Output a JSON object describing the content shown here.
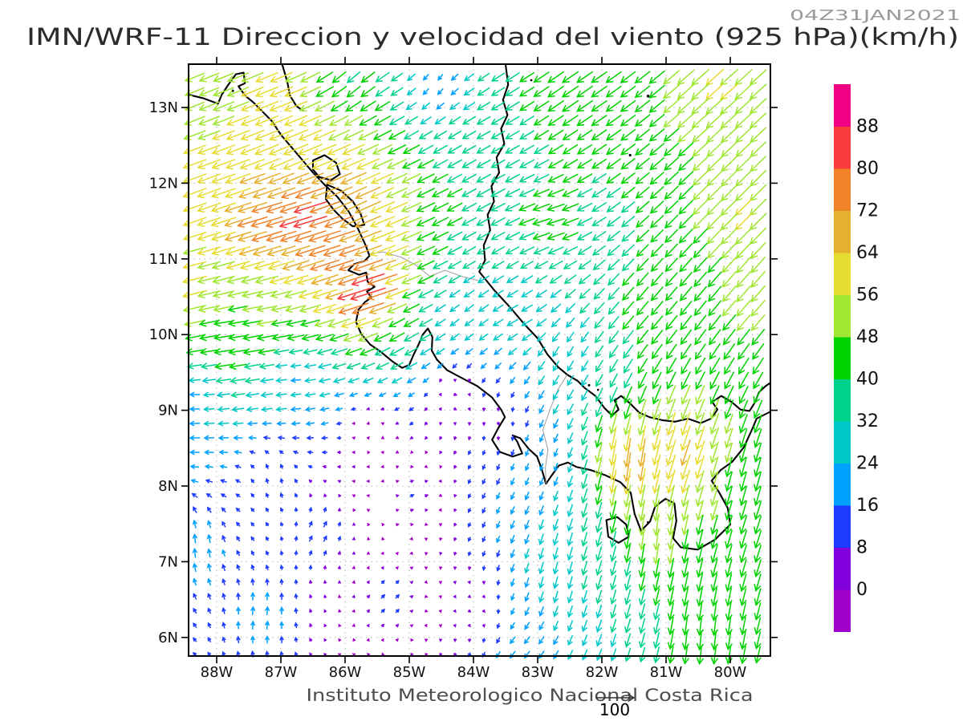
{
  "figure": {
    "title": "IMN/WRF-11 Direccion y velocidad del viento (925 hPa)(km/h)",
    "timestamp": "04Z31JAN2021",
    "footer": "Instituto Meteorologico Nacional Costa Rica",
    "reference_label": "100"
  },
  "colors": {
    "background": "#ffffff",
    "frame": "#000000",
    "coast": "#000000",
    "border": "#9c9c9c",
    "grid": "#bdbdbd",
    "title": "#2b2b2b",
    "timestamp": "#9a9a9a",
    "footer": "#4d4d4d",
    "axis_label": "#111111",
    "reference_arrow": "#333333"
  },
  "axes": {
    "lat_ticks": [
      {
        "value": 6,
        "label": "6N"
      },
      {
        "value": 7,
        "label": "7N"
      },
      {
        "value": 8,
        "label": "8N"
      },
      {
        "value": 9,
        "label": "9N"
      },
      {
        "value": 10,
        "label": "10N"
      },
      {
        "value": 11,
        "label": "11N"
      },
      {
        "value": 12,
        "label": "12N"
      },
      {
        "value": 13,
        "label": "13N"
      }
    ],
    "lon_ticks": [
      {
        "value": 88,
        "label": "88W"
      },
      {
        "value": 87,
        "label": "87W"
      },
      {
        "value": 86,
        "label": "86W"
      },
      {
        "value": 85,
        "label": "85W"
      },
      {
        "value": 84,
        "label": "84W"
      },
      {
        "value": 83,
        "label": "83W"
      },
      {
        "value": 82,
        "label": "82W"
      },
      {
        "value": 81,
        "label": "81W"
      },
      {
        "value": 80,
        "label": "80W"
      }
    ]
  },
  "chart_data": {
    "type": "vector_field",
    "variable": "Direccion y velocidad del viento",
    "level": "925 hPa",
    "units": "km/h",
    "model": "IMN/WRF-11",
    "valid_time": "04Z31JAN2021",
    "lon_range_degW": [
      88.44,
      79.38
    ],
    "lat_range_degN": [
      5.75,
      13.57
    ],
    "grid_on": true,
    "legend_position": "right",
    "colorbar": {
      "boundary_labels": [
        0,
        8,
        16,
        24,
        32,
        40,
        48,
        56,
        64,
        72,
        80,
        88
      ],
      "colors_bottom_to_top": [
        "#a000c8",
        "#8200dc",
        "#1e3cff",
        "#00a0ff",
        "#00c8c8",
        "#00d28c",
        "#00d200",
        "#a0e632",
        "#e6dc32",
        "#e6af2d",
        "#f08228",
        "#fa3c3c",
        "#f00082"
      ]
    },
    "reference_vector": {
      "speed": 100,
      "label": "100"
    },
    "wind_samples": [
      {
        "lonW": 88.4,
        "latN": 13.3,
        "u": -45,
        "v": -18
      },
      {
        "lonW": 87.0,
        "latN": 13.0,
        "u": -55,
        "v": -22
      },
      {
        "lonW": 85.9,
        "latN": 13.4,
        "u": -30,
        "v": -26
      },
      {
        "lonW": 84.6,
        "latN": 13.35,
        "u": -10,
        "v": -13
      },
      {
        "lonW": 83.8,
        "latN": 12.5,
        "u": -32,
        "v": -18
      },
      {
        "lonW": 88.4,
        "latN": 12.0,
        "u": -55,
        "v": -20
      },
      {
        "lonW": 86.9,
        "latN": 12.3,
        "u": -58,
        "v": -25
      },
      {
        "lonW": 85.9,
        "latN": 11.7,
        "u": -62,
        "v": -30
      },
      {
        "lonW": 87.2,
        "latN": 11.5,
        "u": -76,
        "v": -22
      },
      {
        "lonW": 86.6,
        "latN": 11.55,
        "u": -82,
        "v": -25
      },
      {
        "lonW": 86.2,
        "latN": 11.25,
        "u": -78,
        "v": -24
      },
      {
        "lonW": 85.65,
        "latN": 10.55,
        "u": -86,
        "v": -27
      },
      {
        "lonW": 88.45,
        "latN": 10.6,
        "u": -58,
        "v": -14
      },
      {
        "lonW": 87.2,
        "latN": 10.15,
        "u": -48,
        "v": -8
      },
      {
        "lonW": 87.8,
        "latN": 9.9,
        "u": -45,
        "v": -6
      },
      {
        "lonW": 85.1,
        "latN": 10.0,
        "u": -35,
        "v": -20
      },
      {
        "lonW": 84.2,
        "latN": 10.2,
        "u": -20,
        "v": -16
      },
      {
        "lonW": 88.4,
        "latN": 9.1,
        "u": -22,
        "v": 0
      },
      {
        "lonW": 86.8,
        "latN": 9.45,
        "u": -22,
        "v": -2
      },
      {
        "lonW": 88.35,
        "latN": 7.2,
        "u": -2,
        "v": 22
      },
      {
        "lonW": 87.3,
        "latN": 6.3,
        "u": 2,
        "v": 20
      },
      {
        "lonW": 86.4,
        "latN": 7.4,
        "u": 8,
        "v": 14
      },
      {
        "lonW": 85.3,
        "latN": 6.5,
        "u": 9,
        "v": 9
      },
      {
        "lonW": 84.9,
        "latN": 7.9,
        "u": 10,
        "v": 4
      },
      {
        "lonW": 84.3,
        "latN": 9.15,
        "u": 9,
        "v": -2
      },
      {
        "lonW": 83.6,
        "latN": 8.85,
        "u": 3,
        "v": -7
      },
      {
        "lonW": 84.0,
        "latN": 6.4,
        "u": 6,
        "v": -3
      },
      {
        "lonW": 83.2,
        "latN": 5.85,
        "u": -13,
        "v": -16
      },
      {
        "lonW": 82.7,
        "latN": 6.8,
        "u": -7,
        "v": -28
      },
      {
        "lonW": 82.95,
        "latN": 8.3,
        "u": -6,
        "v": -16
      },
      {
        "lonW": 82.5,
        "latN": 13.2,
        "u": -38,
        "v": -26
      },
      {
        "lonW": 80.2,
        "latN": 13.25,
        "u": -42,
        "v": -38
      },
      {
        "lonW": 79.8,
        "latN": 11.6,
        "u": -40,
        "v": -40
      },
      {
        "lonW": 82.8,
        "latN": 11.5,
        "u": -42,
        "v": -13
      },
      {
        "lonW": 81.3,
        "latN": 10.3,
        "u": -28,
        "v": -33
      },
      {
        "lonW": 83.3,
        "latN": 10.25,
        "u": -26,
        "v": -14
      },
      {
        "lonW": 82.6,
        "latN": 9.65,
        "u": -13,
        "v": -24
      },
      {
        "lonW": 79.7,
        "latN": 10.5,
        "u": -33,
        "v": -38
      },
      {
        "lonW": 81.55,
        "latN": 8.35,
        "u": -10,
        "v": -72
      },
      {
        "lonW": 81.2,
        "latN": 7.4,
        "u": -6,
        "v": -52
      },
      {
        "lonW": 80.4,
        "latN": 6.0,
        "u": -5,
        "v": -46
      },
      {
        "lonW": 79.85,
        "latN": 8.2,
        "u": -12,
        "v": -46
      },
      {
        "lonW": 80.75,
        "latN": 8.45,
        "u": -20,
        "v": -62
      },
      {
        "lonW": 82.15,
        "latN": 7.0,
        "u": -10,
        "v": -34
      },
      {
        "lonW": 85.6,
        "latN": 8.7,
        "u": 3,
        "v": 3
      },
      {
        "lonW": 87.1,
        "latN": 8.1,
        "u": -2,
        "v": 12
      }
    ]
  },
  "geo": {
    "coastlines": [
      {
        "name": "pacific-coast",
        "closed": false,
        "points": [
          [
            88.44,
            13.17
          ],
          [
            88.2,
            13.12
          ],
          [
            87.98,
            13.05
          ],
          [
            87.92,
            13.17
          ],
          [
            87.82,
            13.3
          ],
          [
            87.7,
            13.44
          ],
          [
            87.58,
            13.46
          ],
          [
            87.56,
            13.32
          ],
          [
            87.66,
            13.28
          ],
          [
            87.56,
            13.16
          ],
          [
            87.42,
            13.06
          ],
          [
            87.28,
            12.94
          ],
          [
            87.14,
            12.82
          ],
          [
            87.0,
            12.64
          ],
          [
            86.86,
            12.5
          ],
          [
            86.68,
            12.32
          ],
          [
            86.5,
            12.14
          ],
          [
            86.32,
            11.98
          ],
          [
            86.12,
            11.82
          ],
          [
            85.94,
            11.62
          ],
          [
            85.8,
            11.4
          ],
          [
            85.68,
            11.18
          ],
          [
            85.62,
            11.04
          ],
          [
            85.7,
            10.97
          ],
          [
            85.86,
            10.93
          ],
          [
            85.95,
            10.85
          ],
          [
            85.78,
            10.79
          ],
          [
            85.67,
            10.82
          ],
          [
            85.65,
            10.7
          ],
          [
            85.54,
            10.63
          ],
          [
            85.66,
            10.57
          ],
          [
            85.59,
            10.49
          ],
          [
            85.69,
            10.43
          ],
          [
            85.79,
            10.33
          ],
          [
            85.83,
            10.17
          ],
          [
            85.75,
            10.01
          ],
          [
            85.61,
            9.87
          ],
          [
            85.44,
            9.77
          ],
          [
            85.27,
            9.65
          ],
          [
            85.11,
            9.56
          ],
          [
            85.0,
            9.6
          ],
          [
            84.94,
            9.72
          ],
          [
            84.86,
            9.86
          ],
          [
            84.79,
            10.0
          ],
          [
            84.71,
            10.08
          ],
          [
            84.64,
            9.97
          ],
          [
            84.65,
            9.79
          ],
          [
            84.57,
            9.67
          ],
          [
            84.41,
            9.53
          ],
          [
            84.19,
            9.43
          ],
          [
            83.94,
            9.32
          ],
          [
            83.71,
            9.17
          ],
          [
            83.57,
            9.01
          ],
          [
            83.51,
            8.91
          ],
          [
            83.61,
            8.77
          ],
          [
            83.71,
            8.61
          ],
          [
            83.59,
            8.45
          ],
          [
            83.39,
            8.39
          ],
          [
            83.24,
            8.43
          ],
          [
            83.32,
            8.59
          ],
          [
            83.39,
            8.67
          ],
          [
            83.27,
            8.63
          ],
          [
            83.14,
            8.49
          ],
          [
            83.01,
            8.39
          ],
          [
            82.94,
            8.23
          ],
          [
            82.87,
            8.03
          ],
          [
            82.79,
            8.13
          ],
          [
            82.67,
            8.27
          ],
          [
            82.53,
            8.31
          ],
          [
            82.39,
            8.25
          ],
          [
            82.17,
            8.21
          ],
          [
            81.94,
            8.14
          ],
          [
            81.71,
            8.05
          ],
          [
            81.55,
            7.91
          ],
          [
            81.49,
            7.63
          ],
          [
            81.39,
            7.41
          ],
          [
            81.25,
            7.53
          ],
          [
            81.17,
            7.73
          ],
          [
            81.01,
            7.83
          ],
          [
            80.87,
            7.77
          ],
          [
            80.84,
            7.54
          ],
          [
            80.89,
            7.31
          ],
          [
            80.77,
            7.19
          ],
          [
            80.51,
            7.16
          ],
          [
            80.24,
            7.29
          ],
          [
            80.0,
            7.49
          ],
          [
            80.04,
            7.71
          ],
          [
            80.17,
            7.91
          ],
          [
            80.29,
            8.07
          ],
          [
            80.15,
            8.21
          ],
          [
            79.97,
            8.32
          ],
          [
            79.79,
            8.51
          ],
          [
            79.67,
            8.73
          ],
          [
            79.59,
            8.89
          ],
          [
            79.38,
            8.98
          ]
        ]
      },
      {
        "name": "caribbean-coast",
        "closed": false,
        "points": [
          [
            83.5,
            13.57
          ],
          [
            83.46,
            13.3
          ],
          [
            83.54,
            13.1
          ],
          [
            83.47,
            12.9
          ],
          [
            83.57,
            12.72
          ],
          [
            83.52,
            12.52
          ],
          [
            83.64,
            12.34
          ],
          [
            83.6,
            12.14
          ],
          [
            83.72,
            11.96
          ],
          [
            83.68,
            11.76
          ],
          [
            83.78,
            11.58
          ],
          [
            83.74,
            11.38
          ],
          [
            83.84,
            11.18
          ],
          [
            83.82,
            10.98
          ],
          [
            83.91,
            10.83
          ],
          [
            83.68,
            10.59
          ],
          [
            83.44,
            10.37
          ],
          [
            83.2,
            10.13
          ],
          [
            83.0,
            9.95
          ],
          [
            82.85,
            9.74
          ],
          [
            82.68,
            9.57
          ],
          [
            82.54,
            9.47
          ],
          [
            82.38,
            9.39
          ],
          [
            82.26,
            9.29
          ],
          [
            82.1,
            9.19
          ],
          [
            81.96,
            9.03
          ],
          [
            81.84,
            8.93
          ],
          [
            81.74,
            9.01
          ],
          [
            81.8,
            9.13
          ],
          [
            81.7,
            9.19
          ],
          [
            81.56,
            9.09
          ],
          [
            81.42,
            8.97
          ],
          [
            81.26,
            8.91
          ],
          [
            81.06,
            8.87
          ],
          [
            80.86,
            8.85
          ],
          [
            80.66,
            8.89
          ],
          [
            80.46,
            8.83
          ],
          [
            80.3,
            8.89
          ],
          [
            80.2,
            9.01
          ],
          [
            80.28,
            9.11
          ],
          [
            80.14,
            9.19
          ],
          [
            79.98,
            9.11
          ],
          [
            79.84,
            9.01
          ],
          [
            79.7,
            8.99
          ],
          [
            79.62,
            9.1
          ],
          [
            79.55,
            9.24
          ],
          [
            79.45,
            9.32
          ],
          [
            79.38,
            9.36
          ]
        ]
      },
      {
        "name": "fonseca-east-shore",
        "closed": false,
        "points": [
          [
            86.98,
            13.57
          ],
          [
            86.9,
            13.34
          ],
          [
            86.86,
            13.16
          ],
          [
            86.76,
            13.02
          ],
          [
            86.66,
            12.96
          ]
        ]
      },
      {
        "name": "lake-managua",
        "closed": true,
        "points": [
          [
            86.5,
            12.3
          ],
          [
            86.32,
            12.37
          ],
          [
            86.14,
            12.27
          ],
          [
            86.08,
            12.12
          ],
          [
            86.22,
            12.04
          ],
          [
            86.4,
            12.08
          ],
          [
            86.5,
            12.18
          ]
        ]
      },
      {
        "name": "lake-nicaragua",
        "closed": true,
        "points": [
          [
            86.28,
            11.98
          ],
          [
            86.06,
            11.9
          ],
          [
            85.88,
            11.76
          ],
          [
            85.76,
            11.6
          ],
          [
            85.7,
            11.45
          ],
          [
            85.88,
            11.43
          ],
          [
            86.04,
            11.53
          ],
          [
            86.18,
            11.65
          ],
          [
            86.3,
            11.79
          ]
        ]
      },
      {
        "name": "coiba-island",
        "closed": true,
        "points": [
          [
            81.93,
            7.55
          ],
          [
            81.76,
            7.59
          ],
          [
            81.62,
            7.49
          ],
          [
            81.58,
            7.33
          ],
          [
            81.74,
            7.25
          ],
          [
            81.9,
            7.33
          ]
        ]
      }
    ],
    "islets": [
      {
        "lonW": 87.75,
        "latN": 13.22,
        "r": 1.6
      },
      {
        "lonW": 83.1,
        "latN": 13.36,
        "r": 1.4
      },
      {
        "lonW": 81.56,
        "latN": 12.37,
        "r": 1.6
      },
      {
        "lonW": 81.28,
        "latN": 13.15,
        "r": 1.8
      },
      {
        "lonW": 82.2,
        "latN": 9.33,
        "r": 1.5
      },
      {
        "lonW": 82.06,
        "latN": 9.27,
        "r": 1.3
      },
      {
        "lonW": 81.28,
        "latN": 7.52,
        "r": 1.5
      }
    ],
    "borders": [
      {
        "name": "border-nicaragua-costarica",
        "points": [
          [
            85.62,
            11.07
          ],
          [
            85.4,
            11.09
          ],
          [
            85.12,
            11.02
          ],
          [
            84.9,
            10.92
          ],
          [
            84.68,
            10.77
          ],
          [
            84.44,
            10.85
          ],
          [
            84.19,
            10.77
          ],
          [
            83.91,
            10.71
          ]
        ]
      },
      {
        "name": "border-costarica-panama",
        "points": [
          [
            82.54,
            9.47
          ],
          [
            82.68,
            9.28
          ],
          [
            82.8,
            9.03
          ],
          [
            82.92,
            8.74
          ],
          [
            82.84,
            8.48
          ],
          [
            82.88,
            8.24
          ],
          [
            82.87,
            8.03
          ]
        ]
      }
    ]
  }
}
